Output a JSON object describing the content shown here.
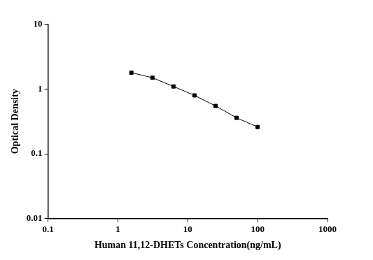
{
  "chart_data": {
    "type": "line",
    "x": [
      1.5625,
      3.125,
      6.25,
      12.5,
      25,
      50,
      100
    ],
    "values": [
      1.8,
      1.5,
      1.1,
      0.8,
      0.55,
      0.36,
      0.26
    ],
    "color": "#000000",
    "marker": "square",
    "line_style": "solid",
    "log": true,
    "grid": false,
    "xlim": [
      0.1,
      1000
    ],
    "xticks": [
      0.1,
      1,
      10,
      100,
      1000
    ],
    "ylim": [
      0.01,
      10
    ],
    "yticks": [
      0.01,
      0.1,
      1,
      10
    ],
    "x_label": "Human 11,12-DHETs Concentration(ng/mL)",
    "y_label": "Optical Density"
  }
}
